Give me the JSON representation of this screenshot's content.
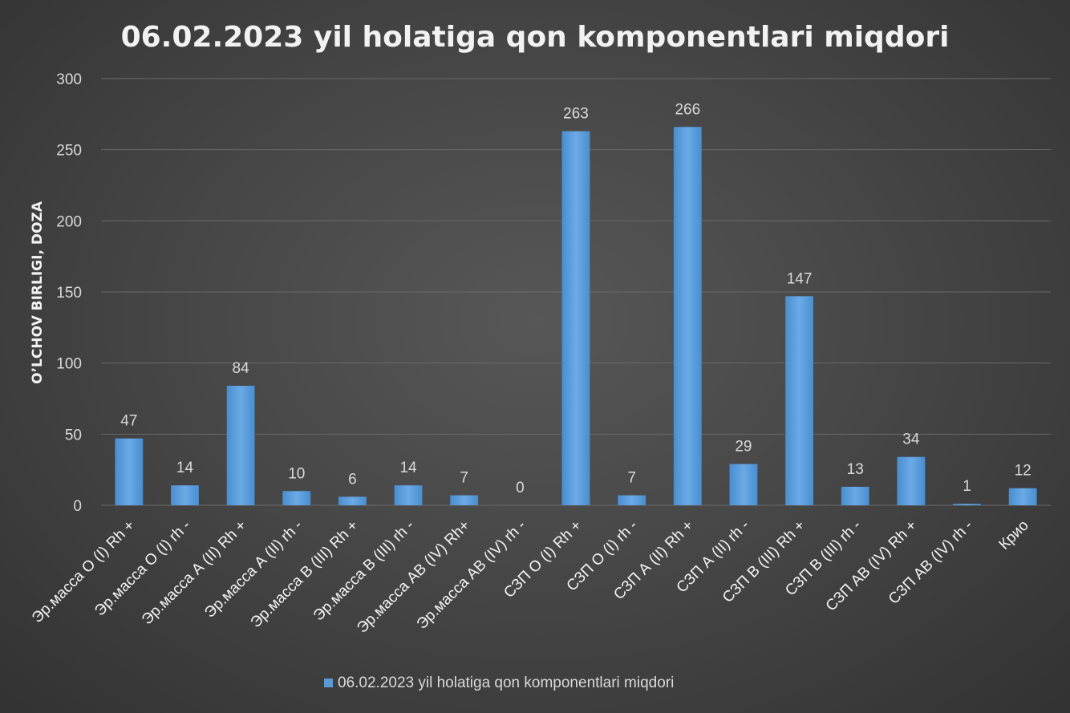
{
  "chart_data": {
    "type": "bar",
    "title": "06.02.2023 yil holatiga qon komponentlari miqdori",
    "xlabel": "",
    "ylabel": "O’LCHOV BIRLIGI, DOZA",
    "ylim": [
      0,
      300
    ],
    "yticks": [
      "0",
      "50",
      "100",
      "150",
      "200",
      "250",
      "300"
    ],
    "grid": true,
    "legend_position": "bottom",
    "categories": [
      "Эр.масса  О (I) Rh +",
      "Эр.масса  О (I) rh -",
      "Эр.масса  А (II) Rh +",
      "Эр.масса  А (II) rh -",
      "Эр.масса  В (III) Rh +",
      "Эр.масса  В (III) rh -",
      "Эр.масса АВ (IV) Rh+",
      "Эр.масса  АВ (IV) rh -",
      "СЗП  О (I) Rh +",
      "СЗП  О (I) rh -",
      "СЗП  А (II) Rh +",
      "СЗП  А (II) rh -",
      "СЗП  В (III) Rh +",
      "СЗП  В (III) rh -",
      "СЗП  АВ (IV) Rh +",
      "СЗП  АВ (IV) rh -",
      "Крио"
    ],
    "series": [
      {
        "name": "06.02.2023 yil holatiga qon komponentlari miqdori",
        "values": [
          47,
          14,
          84,
          10,
          6,
          14,
          7,
          0,
          263,
          7,
          266,
          29,
          147,
          13,
          34,
          1,
          12
        ],
        "labels": [
          "47",
          "14",
          "84",
          "10",
          "6",
          "14",
          "7",
          "0",
          "263",
          "7",
          "266",
          "29",
          "147",
          "13",
          "34",
          "1",
          "12"
        ],
        "color": "#5b9bd5"
      }
    ]
  }
}
